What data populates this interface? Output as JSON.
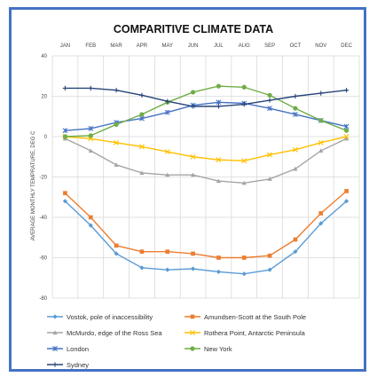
{
  "chart_data": {
    "type": "line",
    "title": "COMPARITIVE CLIMATE DATA",
    "xlabel": "",
    "ylabel": "AVERAGE MONTHLY TEMPRATURE, DEG C",
    "x": [
      "JAN",
      "FEB",
      "MAR",
      "APR",
      "MAY",
      "JUN",
      "JUL",
      "AUG",
      "SEP",
      "OCT",
      "NOV",
      "DEC"
    ],
    "ylim": [
      -80,
      40
    ],
    "yticks": [
      40,
      20,
      0,
      -20,
      -40,
      -60,
      -80
    ],
    "grid": true,
    "x_axis_position": "top",
    "legend_position": "bottom",
    "series": [
      {
        "name": "Vostok, pole of inaccessibility",
        "color": "#5b9bd5",
        "marker": "diamond",
        "values": [
          -32,
          -44,
          -58,
          -65,
          -66,
          -65.5,
          -67,
          -68,
          -66,
          -57,
          -43,
          -32
        ]
      },
      {
        "name": "Amundsen-Scott at the South Pole",
        "color": "#ed7d31",
        "marker": "square",
        "values": [
          -28,
          -40,
          -54,
          -57,
          -57,
          -58,
          -60,
          -60,
          -59,
          -51,
          -38,
          -27
        ]
      },
      {
        "name": "McMurdo, edge of the Ross Sea",
        "color": "#a5a5a5",
        "marker": "triangle",
        "values": [
          -1,
          -7,
          -14,
          -18,
          -19,
          -19,
          -22,
          -23,
          -21,
          -16,
          -7,
          -1
        ]
      },
      {
        "name": "Rothera Point, Antarctic Peninsula",
        "color": "#ffc000",
        "marker": "x",
        "values": [
          0,
          -1,
          -3,
          -5,
          -7.5,
          -10,
          -11.5,
          -12,
          -9,
          -6.5,
          -3,
          0
        ]
      },
      {
        "name": "London",
        "color": "#4472c4",
        "marker": "star",
        "values": [
          3,
          4,
          7,
          9,
          12,
          15.5,
          17,
          16.5,
          14,
          11,
          8,
          5
        ]
      },
      {
        "name": "New York",
        "color": "#70ad47",
        "marker": "circle",
        "values": [
          0,
          0.5,
          6,
          11,
          17,
          22,
          25,
          24.5,
          20.5,
          14,
          8,
          3
        ]
      },
      {
        "name": "Sydney",
        "color": "#264478",
        "marker": "plus",
        "values": [
          24,
          24,
          23,
          20.5,
          17.5,
          15,
          15,
          16,
          18,
          20,
          21.5,
          23
        ]
      }
    ]
  }
}
